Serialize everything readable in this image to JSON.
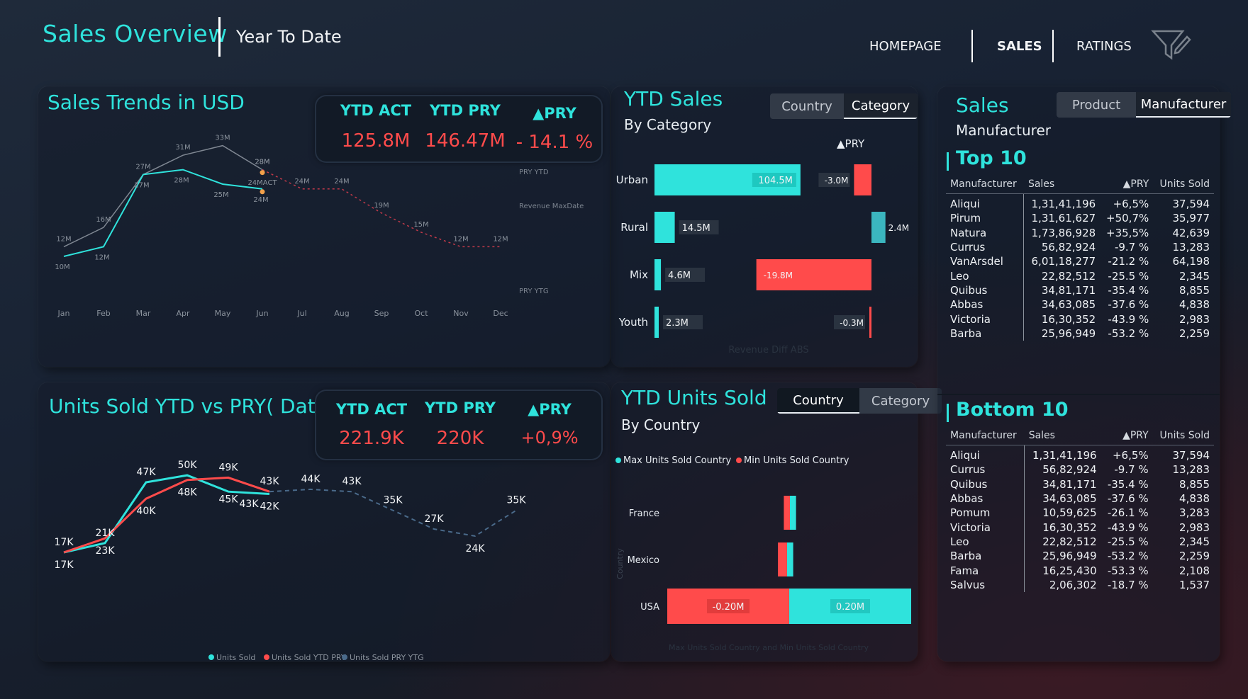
{
  "header": {
    "title": "Sales Overview",
    "subtitle": "Year To Date",
    "nav": [
      {
        "label": "HOMEPAGE",
        "active": false
      },
      {
        "label": "SALES",
        "active": true
      },
      {
        "label": "RATINGS",
        "active": false
      }
    ],
    "filter_icon": "filter-icon"
  },
  "sales_trends": {
    "title": "Sales Trends in USD",
    "kpis": {
      "act_label": "YTD ACT",
      "act_value": "125.8M",
      "pry_label": "YTD PRY",
      "pry_value": "146.47M",
      "delta_label": "▲PRY",
      "delta_value": "- 14.1 %"
    },
    "series_labels": {
      "pry_ytd": "PRY YTD",
      "maxdate": "Revenue MaxDate",
      "pry_ytg": "PRY YTG"
    },
    "chart_data": {
      "type": "line",
      "categories": [
        "Jan",
        "Feb",
        "Mar",
        "Apr",
        "May",
        "Jun",
        "Jul",
        "Aug",
        "Sep",
        "Oct",
        "Nov",
        "Dec"
      ],
      "series": [
        {
          "name": "PRY YTD",
          "values": [
            12,
            16,
            27,
            31,
            33,
            28,
            null,
            null,
            null,
            null,
            null,
            null
          ],
          "color": "#7f8792",
          "labels": [
            "12M",
            "16M",
            "27M",
            "31M",
            "33M",
            "28M"
          ]
        },
        {
          "name": "ACT",
          "values": [
            10,
            12,
            27,
            28,
            25,
            24,
            null,
            null,
            null,
            null,
            null,
            null
          ],
          "color": "#2fe3dc",
          "labels": [
            "10M",
            "12M",
            "27M",
            "28M",
            "25M",
            "24M"
          ]
        },
        {
          "name": "PRY YTG",
          "values": [
            null,
            null,
            null,
            null,
            null,
            28,
            24,
            24,
            19,
            15,
            12,
            12
          ],
          "color": "#c23a4a",
          "labels": [
            "",
            "",
            "",
            "",
            "",
            "28M",
            "24M",
            "24M",
            "19M",
            "15M",
            "12M",
            "12M"
          ]
        }
      ],
      "annotation": "24MACT",
      "ylim": [
        0,
        40
      ]
    }
  },
  "ytd_sales": {
    "title": "YTD Sales",
    "subtitle": "By Category",
    "tabs": [
      {
        "label": "Country",
        "active": false
      },
      {
        "label": "Category",
        "active": true
      }
    ],
    "delta_header": "▲PRY",
    "watermark": "Revenue Diff ABS",
    "chart_data": {
      "type": "bar",
      "categories": [
        "Urban",
        "Rural",
        "Mix",
        "Youth"
      ],
      "values": [
        104.5,
        14.5,
        4.6,
        2.3
      ],
      "value_labels": [
        "104.5M",
        "14.5M",
        "4.6M",
        "2.3M"
      ],
      "delta_values": [
        -3.0,
        2.4,
        -19.8,
        -0.3
      ],
      "delta_labels": [
        "-3.0M",
        "2.4M",
        "-19.8M",
        "-0.3M"
      ]
    }
  },
  "units_sold": {
    "title": "Units Sold YTD vs PRY( Date)",
    "kpis": {
      "act_label": "YTD ACT",
      "act_value": "221.9K",
      "pry_label": "YTD PRY",
      "pry_value": "220K",
      "delta_label": "▲PRY",
      "delta_value": "+0,9%"
    },
    "legend": [
      "Units Sold",
      "Units Sold YTD PRY",
      "Units Sold PRY YTG"
    ],
    "chart_data": {
      "type": "line",
      "categories": [
        "Jan",
        "Feb",
        "Mar",
        "Apr",
        "May",
        "Jun",
        "Jul",
        "Aug",
        "Sep",
        "Oct",
        "Nov",
        "Dec"
      ],
      "series": [
        {
          "name": "Units Sold",
          "values": [
            17,
            21,
            47,
            50,
            43,
            42,
            null,
            null,
            null,
            null,
            null,
            null
          ],
          "color": "#2fe3dc"
        },
        {
          "name": "Units Sold YTD PRY",
          "values": [
            17,
            23,
            40,
            48,
            49,
            43,
            null,
            null,
            null,
            null,
            null,
            null
          ],
          "color": "#ff4b4b"
        },
        {
          "name": "Units Sold PRY YTG",
          "values": [
            null,
            null,
            null,
            null,
            null,
            43,
            44,
            43,
            35,
            27,
            24,
            35
          ],
          "color": "#4a6a8a"
        }
      ],
      "point_labels": [
        {
          "text": "17K",
          "i": 0,
          "v": 17,
          "pos": "above"
        },
        {
          "text": "17K",
          "i": 0,
          "v": 17,
          "pos": "below"
        },
        {
          "text": "21K",
          "i": 1,
          "v": 21,
          "pos": "above"
        },
        {
          "text": "23K",
          "i": 1,
          "v": 23,
          "pos": "below"
        },
        {
          "text": "47K",
          "i": 2,
          "v": 47,
          "pos": "above"
        },
        {
          "text": "40K",
          "i": 2,
          "v": 40,
          "pos": "below"
        },
        {
          "text": "50K",
          "i": 3,
          "v": 50,
          "pos": "above"
        },
        {
          "text": "48K",
          "i": 3,
          "v": 48,
          "pos": "below"
        },
        {
          "text": "49K",
          "i": 4,
          "v": 49,
          "pos": "above"
        },
        {
          "text": "45K",
          "i": 4,
          "v": 45,
          "pos": "below"
        },
        {
          "text": "43K",
          "i": 4.5,
          "v": 43,
          "pos": "below"
        },
        {
          "text": "43K",
          "i": 5,
          "v": 43,
          "pos": "above"
        },
        {
          "text": "42K",
          "i": 5,
          "v": 42,
          "pos": "below"
        },
        {
          "text": "44K",
          "i": 6,
          "v": 44,
          "pos": "above"
        },
        {
          "text": "43K",
          "i": 7,
          "v": 43,
          "pos": "above"
        },
        {
          "text": "35K",
          "i": 8,
          "v": 35,
          "pos": "above"
        },
        {
          "text": "27K",
          "i": 9,
          "v": 27,
          "pos": "above"
        },
        {
          "text": "24K",
          "i": 10,
          "v": 24,
          "pos": "below"
        },
        {
          "text": "35K",
          "i": 11,
          "v": 35,
          "pos": "above"
        }
      ],
      "ylim": [
        0,
        60
      ]
    }
  },
  "ytd_units": {
    "title": "YTD Units Sold",
    "subtitle": "By Country",
    "tabs": [
      {
        "label": "Country",
        "active": true
      },
      {
        "label": "Category",
        "active": false
      }
    ],
    "legend": [
      "Max Units Sold Country",
      "Min Units Sold Country"
    ],
    "axis_title": "Country",
    "watermark": "Max Units Sold Country and Min Units Sold Country",
    "chart_data": {
      "type": "bar",
      "categories": [
        "France",
        "Mexico",
        "USA"
      ],
      "min_values": [
        -0.01,
        -0.015,
        -0.2
      ],
      "max_values": [
        0.01,
        0.01,
        0.2
      ],
      "labels_min": [
        "",
        "",
        "-0.20M"
      ],
      "labels_max": [
        "",
        "",
        "0.20M"
      ]
    }
  },
  "sales_manufacturer": {
    "title": "Sales",
    "subtitle": "Manufacturer",
    "tabs": [
      {
        "label": "Product",
        "active": false
      },
      {
        "label": "Manufacturer",
        "active": true
      }
    ],
    "top": {
      "title": "Top 10",
      "headers": [
        "Manufacturer",
        "Sales",
        "▲PRY",
        "Units Sold"
      ],
      "rows": [
        [
          "Aliqui",
          "1,31,41,196",
          "+6,5%",
          "37,594"
        ],
        [
          "Pirum",
          "1,31,61,627",
          "+50,7%",
          "35,977"
        ],
        [
          "Natura",
          "1,73,86,928",
          "+35,5%",
          "42,639"
        ],
        [
          "Currus",
          "56,82,924",
          "-9.7 %",
          "13,283"
        ],
        [
          "VanArsdel",
          "6,01,18,277",
          "-21.2 %",
          "64,198"
        ],
        [
          "Leo",
          "22,82,512",
          "-25.5 %",
          "2,345"
        ],
        [
          "Quibus",
          "34,81,171",
          "-35.4 %",
          "8,855"
        ],
        [
          "Abbas",
          "34,63,085",
          "-37.6 %",
          "4,838"
        ],
        [
          "Victoria",
          "16,30,352",
          "-43.9 %",
          "2,983"
        ],
        [
          "Barba",
          "25,96,949",
          "-53.2 %",
          "2,259"
        ]
      ]
    },
    "bottom": {
      "title": "Bottom 10",
      "headers": [
        "Manufacturer",
        "Sales",
        "▲PRY",
        "Units Sold"
      ],
      "rows": [
        [
          "Aliqui",
          "1,31,41,196",
          "+6,5%",
          "37,594"
        ],
        [
          "Currus",
          "56,82,924",
          "-9.7 %",
          "13,283"
        ],
        [
          "Quibus",
          "34,81,171",
          "-35.4 %",
          "8,855"
        ],
        [
          "Abbas",
          "34,63,085",
          "-37.6 %",
          "4,838"
        ],
        [
          "Pomum",
          "10,59,625",
          "-26.1 %",
          "3,283"
        ],
        [
          "Victoria",
          "16,30,352",
          "-43.9 %",
          "2,983"
        ],
        [
          "Leo",
          "22,82,512",
          "-25.5 %",
          "2,345"
        ],
        [
          "Barba",
          "25,96,949",
          "-53.2 %",
          "2,259"
        ],
        [
          "Fama",
          "16,25,430",
          "-53.3 %",
          "2,108"
        ],
        [
          "Salvus",
          "2,06,302",
          "-18.7 %",
          "1,537"
        ]
      ]
    }
  },
  "colors": {
    "teal": "#2fe3dc",
    "red": "#ff4b4b",
    "grey": "#7f8792",
    "navy": "#4a6a8a"
  }
}
